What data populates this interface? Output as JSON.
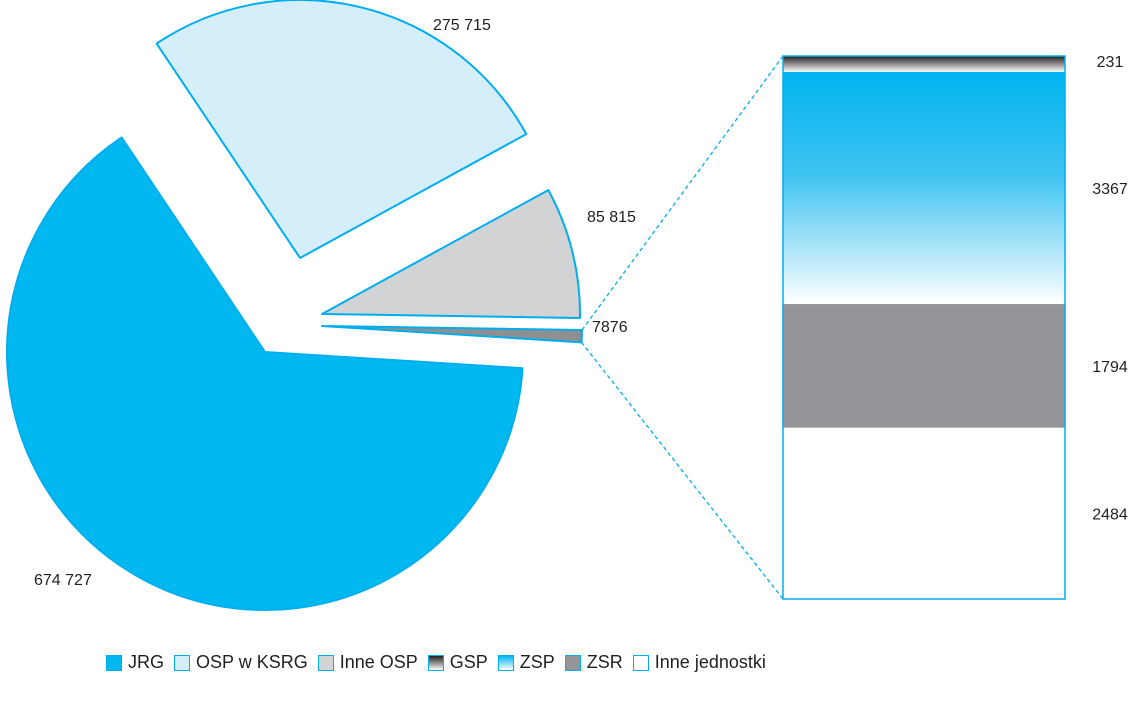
{
  "chart_data": {
    "type": "pie",
    "pie": {
      "slices": [
        {
          "key": "jrg",
          "label": "JRG",
          "value": 674727,
          "display": "674 727",
          "color": "#00b8f0"
        },
        {
          "key": "osp_ksrg",
          "label": "OSP w KSRG",
          "value": 275715,
          "display": "275 715",
          "color": "#d4eefa"
        },
        {
          "key": "inne_osp",
          "label": "Inne OSP",
          "value": 85815,
          "display": "85 815",
          "color": "#d1d3d4"
        },
        {
          "key": "inne_jedn_group",
          "label": "",
          "value": 7876,
          "display": "7876",
          "color": "#8e8f91"
        }
      ]
    },
    "breakdown": {
      "total": 7876,
      "segments": [
        {
          "key": "gsp",
          "label": "GSP",
          "value": 231,
          "display": "231"
        },
        {
          "key": "zsp",
          "label": "ZSP",
          "value": 3367,
          "display": "3367"
        },
        {
          "key": "zsr",
          "label": "ZSR",
          "value": 1794,
          "display": "1794"
        },
        {
          "key": "inne_jednostki",
          "label": "Inne jednostki",
          "value": 2484,
          "display": "2484"
        }
      ]
    },
    "legend": {
      "placement": "bottom",
      "items": [
        {
          "key": "jrg",
          "label": "JRG"
        },
        {
          "key": "osp_ksrg",
          "label": "OSP w KSRG"
        },
        {
          "key": "inne_osp",
          "label": "Inne OSP"
        },
        {
          "key": "gsp",
          "label": "GSP"
        },
        {
          "key": "zsp",
          "label": "ZSP"
        },
        {
          "key": "zsr",
          "label": "ZSR"
        },
        {
          "key": "inne_jednostki",
          "label": "Inne jednostki"
        }
      ]
    },
    "colors": {
      "outline": "#00aeef",
      "jrg": "#00b8f0",
      "osp_ksrg": "#d4eefa",
      "inne_osp": "#d1d3d4",
      "gsp_dark": "#231f20",
      "zsp": "#00b4ef",
      "zsr": "#939598",
      "inne_jednostki": "#ffffff"
    }
  }
}
